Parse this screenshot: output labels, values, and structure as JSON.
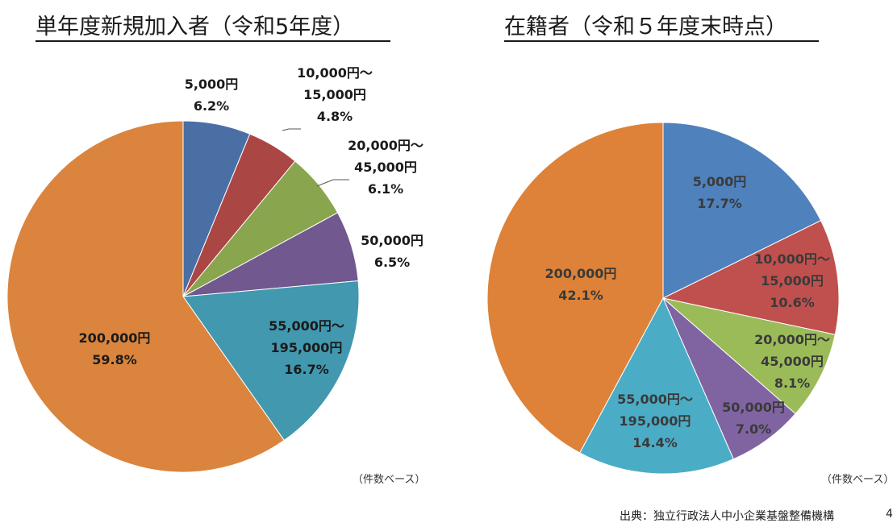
{
  "chart_data": [
    {
      "type": "pie",
      "title": "単年度新規加入者（令和5年度）",
      "note": "（件数ベース）",
      "slices": [
        {
          "label_lines": [
            "5,000円"
          ],
          "percent_text": "6.2%",
          "value": 6.2,
          "color": "#4a6fa5"
        },
        {
          "label_lines": [
            "10,000円～",
            "15,000円"
          ],
          "percent_text": "4.8%",
          "value": 4.8,
          "color": "#aa4643"
        },
        {
          "label_lines": [
            "20,000円～",
            "45,000円"
          ],
          "percent_text": "6.1%",
          "value": 6.1,
          "color": "#89a54e"
        },
        {
          "label_lines": [
            "50,000円"
          ],
          "percent_text": "6.5%",
          "value": 6.5,
          "color": "#71588f"
        },
        {
          "label_lines": [
            "55,000円～",
            "195,000円"
          ],
          "percent_text": "16.7%",
          "value": 16.7,
          "color": "#4198af"
        },
        {
          "label_lines": [
            "200,000円"
          ],
          "percent_text": "59.8%",
          "value": 59.8,
          "color": "#db843d"
        }
      ]
    },
    {
      "type": "pie",
      "title": "在籍者（令和５年度末時点）",
      "note": "（件数ベース）",
      "slices": [
        {
          "label_lines": [
            "5,000円"
          ],
          "percent_text": "17.7%",
          "value": 17.7,
          "color": "#4f81bd"
        },
        {
          "label_lines": [
            "10,000円～",
            "15,000円"
          ],
          "percent_text": "10.6%",
          "value": 10.6,
          "color": "#c0504d"
        },
        {
          "label_lines": [
            "20,000円～",
            "45,000円"
          ],
          "percent_text": "8.1%",
          "value": 8.1,
          "color": "#9bbb59"
        },
        {
          "label_lines": [
            "50,000円"
          ],
          "percent_text": "7.0%",
          "value": 7.0,
          "color": "#8064a2"
        },
        {
          "label_lines": [
            "55,000円～",
            "195,000円"
          ],
          "percent_text": "14.4%",
          "value": 14.4,
          "color": "#4bacc6"
        },
        {
          "label_lines": [
            "200,000円"
          ],
          "percent_text": "42.1%",
          "value": 42.1,
          "color": "#dd8238"
        }
      ]
    }
  ],
  "footer": {
    "source": "出典：独立行政法人中小企業基盤整備機構",
    "page_number": "4"
  }
}
